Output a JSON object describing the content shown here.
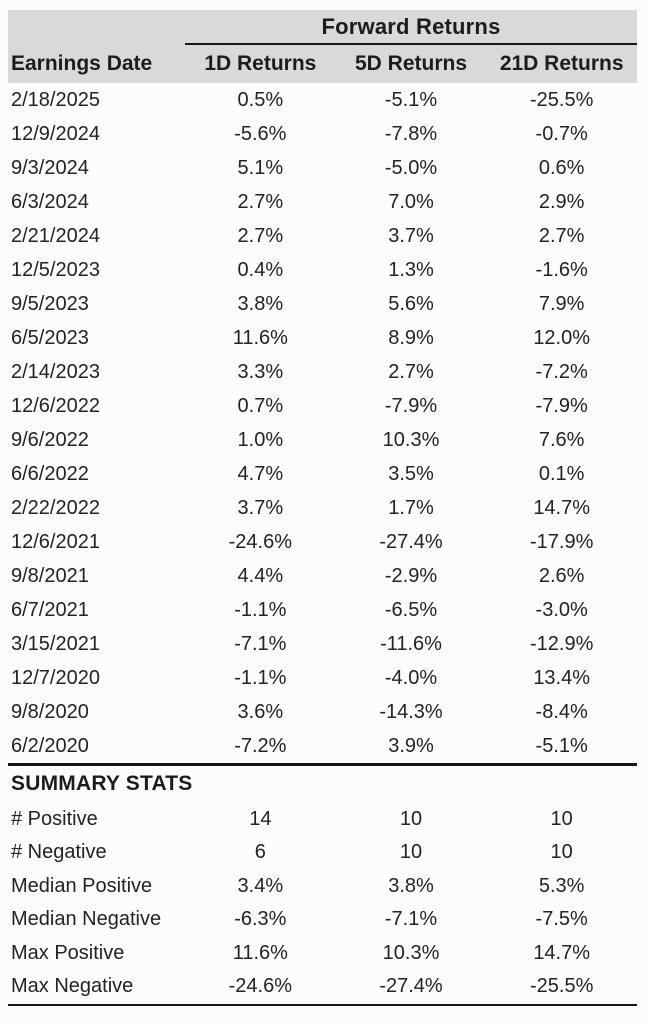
{
  "table": {
    "span_header": "Forward Returns",
    "columns": [
      "Earnings Date",
      "1D Returns",
      "5D Returns",
      "21D Returns"
    ],
    "rows": [
      {
        "date": "2/18/2025",
        "values": [
          "0.5%",
          "-5.1%",
          "-25.5%"
        ]
      },
      {
        "date": "12/9/2024",
        "values": [
          "-5.6%",
          "-7.8%",
          "-0.7%"
        ]
      },
      {
        "date": "9/3/2024",
        "values": [
          "5.1%",
          "-5.0%",
          "0.6%"
        ]
      },
      {
        "date": "6/3/2024",
        "values": [
          "2.7%",
          "7.0%",
          "2.9%"
        ]
      },
      {
        "date": "2/21/2024",
        "values": [
          "2.7%",
          "3.7%",
          "2.7%"
        ]
      },
      {
        "date": "12/5/2023",
        "values": [
          "0.4%",
          "1.3%",
          "-1.6%"
        ]
      },
      {
        "date": "9/5/2023",
        "values": [
          "3.8%",
          "5.6%",
          "7.9%"
        ]
      },
      {
        "date": "6/5/2023",
        "values": [
          "11.6%",
          "8.9%",
          "12.0%"
        ]
      },
      {
        "date": "2/14/2023",
        "values": [
          "3.3%",
          "2.7%",
          "-7.2%"
        ]
      },
      {
        "date": "12/6/2022",
        "values": [
          "0.7%",
          "-7.9%",
          "-7.9%"
        ]
      },
      {
        "date": "9/6/2022",
        "values": [
          "1.0%",
          "10.3%",
          "7.6%"
        ]
      },
      {
        "date": "6/6/2022",
        "values": [
          "4.7%",
          "3.5%",
          "0.1%"
        ]
      },
      {
        "date": "2/22/2022",
        "values": [
          "3.7%",
          "1.7%",
          "14.7%"
        ]
      },
      {
        "date": "12/6/2021",
        "values": [
          "-24.6%",
          "-27.4%",
          "-17.9%"
        ]
      },
      {
        "date": "9/8/2021",
        "values": [
          "4.4%",
          "-2.9%",
          "2.6%"
        ]
      },
      {
        "date": "6/7/2021",
        "values": [
          "-1.1%",
          "-6.5%",
          "-3.0%"
        ]
      },
      {
        "date": "3/15/2021",
        "values": [
          "-7.1%",
          "-11.6%",
          "-12.9%"
        ]
      },
      {
        "date": "12/7/2020",
        "values": [
          "-1.1%",
          "-4.0%",
          "13.4%"
        ]
      },
      {
        "date": "9/8/2020",
        "values": [
          "3.6%",
          "-14.3%",
          "-8.4%"
        ]
      },
      {
        "date": "6/2/2020",
        "values": [
          "-7.2%",
          "3.9%",
          "-5.1%"
        ]
      }
    ]
  },
  "summary": {
    "title": "SUMMARY STATS",
    "rows": [
      {
        "label": "# Positive",
        "values": [
          "14",
          "10",
          "10"
        ]
      },
      {
        "label": "# Negative",
        "values": [
          "6",
          "10",
          "10"
        ]
      },
      {
        "label": "Median Positive",
        "values": [
          "3.4%",
          "3.8%",
          "5.3%"
        ]
      },
      {
        "label": "Median Negative",
        "values": [
          "-6.3%",
          "-7.1%",
          "-7.5%"
        ]
      },
      {
        "label": "Max Positive",
        "values": [
          "11.6%",
          "10.3%",
          "14.7%"
        ]
      },
      {
        "label": "Max Negative",
        "values": [
          "-24.6%",
          "-27.4%",
          "-25.5%"
        ]
      }
    ]
  },
  "colors": {
    "header_bg": "#d9d9d9",
    "rule": "#161616",
    "text": "#232323",
    "header_text": "#1c1c1c",
    "page_bg": "#fcfcfc"
  },
  "chart_data": {
    "type": "table",
    "title": "Forward Returns",
    "columns": [
      "Earnings Date",
      "1D Returns",
      "5D Returns",
      "21D Returns"
    ],
    "rows": [
      [
        "2/18/2025",
        0.5,
        -5.1,
        -25.5
      ],
      [
        "12/9/2024",
        -5.6,
        -7.8,
        -0.7
      ],
      [
        "9/3/2024",
        5.1,
        -5.0,
        0.6
      ],
      [
        "6/3/2024",
        2.7,
        7.0,
        2.9
      ],
      [
        "2/21/2024",
        2.7,
        3.7,
        2.7
      ],
      [
        "12/5/2023",
        0.4,
        1.3,
        -1.6
      ],
      [
        "9/5/2023",
        3.8,
        5.6,
        7.9
      ],
      [
        "6/5/2023",
        11.6,
        8.9,
        12.0
      ],
      [
        "2/14/2023",
        3.3,
        2.7,
        -7.2
      ],
      [
        "12/6/2022",
        0.7,
        -7.9,
        -7.9
      ],
      [
        "9/6/2022",
        1.0,
        10.3,
        7.6
      ],
      [
        "6/6/2022",
        4.7,
        3.5,
        0.1
      ],
      [
        "2/22/2022",
        3.7,
        1.7,
        14.7
      ],
      [
        "12/6/2021",
        -24.6,
        -27.4,
        -17.9
      ],
      [
        "9/8/2021",
        4.4,
        -2.9,
        2.6
      ],
      [
        "6/7/2021",
        -1.1,
        -6.5,
        -3.0
      ],
      [
        "3/15/2021",
        -7.1,
        -11.6,
        -12.9
      ],
      [
        "12/7/2020",
        -1.1,
        -4.0,
        13.4
      ],
      [
        "9/8/2020",
        3.6,
        -14.3,
        -8.4
      ],
      [
        "6/2/2020",
        -7.2,
        3.9,
        -5.1
      ]
    ],
    "summary_stats": {
      "# Positive": [
        14,
        10,
        10
      ],
      "# Negative": [
        6,
        10,
        10
      ],
      "Median Positive": [
        3.4,
        3.8,
        5.3
      ],
      "Median Negative": [
        -6.3,
        -7.1,
        -7.5
      ],
      "Max Positive": [
        11.6,
        10.3,
        14.7
      ],
      "Max Negative": [
        -24.6,
        -27.4,
        -25.5
      ]
    },
    "units": "percent"
  }
}
